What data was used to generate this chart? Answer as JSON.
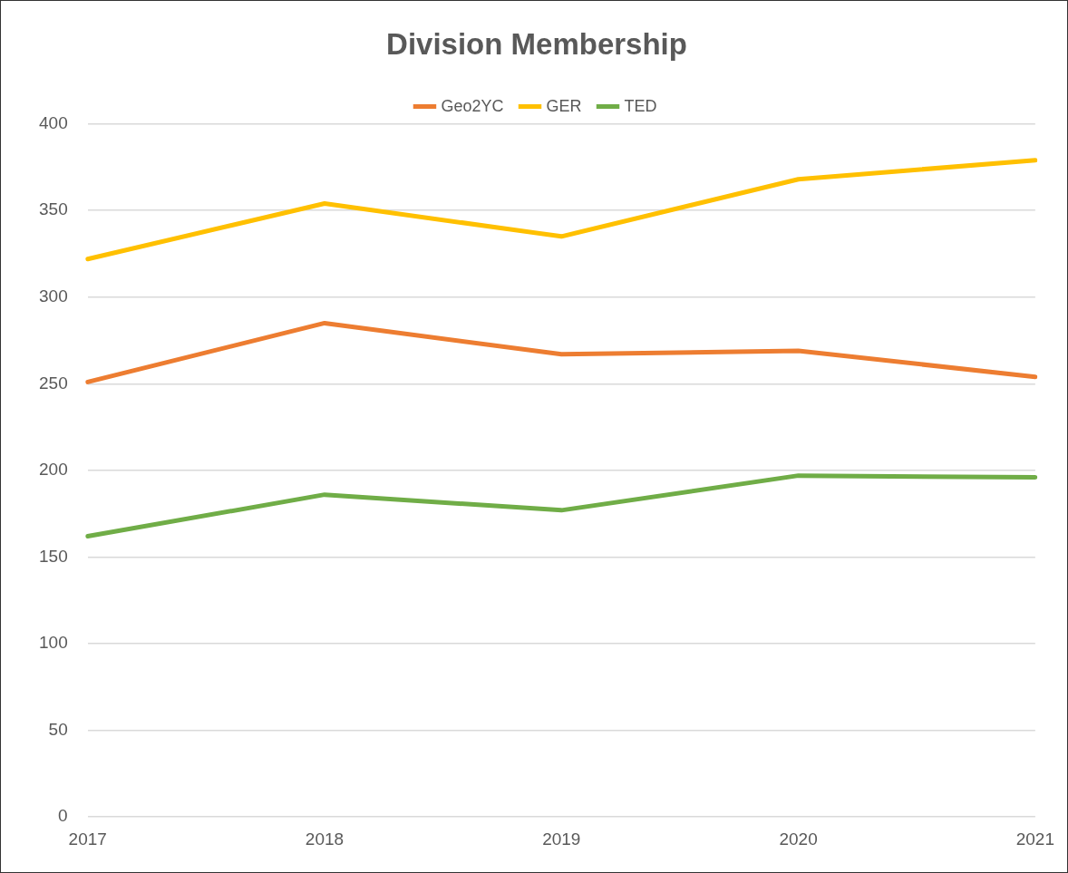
{
  "chart_data": {
    "type": "line",
    "title": "Division Membership",
    "categories": [
      "2017",
      "2018",
      "2019",
      "2020",
      "2021"
    ],
    "series": [
      {
        "name": "Geo2YC",
        "color": "#ed7d31",
        "values": [
          251,
          285,
          267,
          269,
          254
        ]
      },
      {
        "name": "GER",
        "color": "#ffc000",
        "values": [
          322,
          354,
          335,
          368,
          379
        ]
      },
      {
        "name": "TED",
        "color": "#70ad47",
        "values": [
          162,
          186,
          177,
          197,
          196
        ]
      }
    ],
    "ylim": [
      0,
      400
    ],
    "yticks": [
      0,
      50,
      100,
      150,
      200,
      250,
      300,
      350,
      400
    ],
    "grid": "y",
    "legend": "top",
    "marker": "none",
    "line_style": "solid"
  }
}
